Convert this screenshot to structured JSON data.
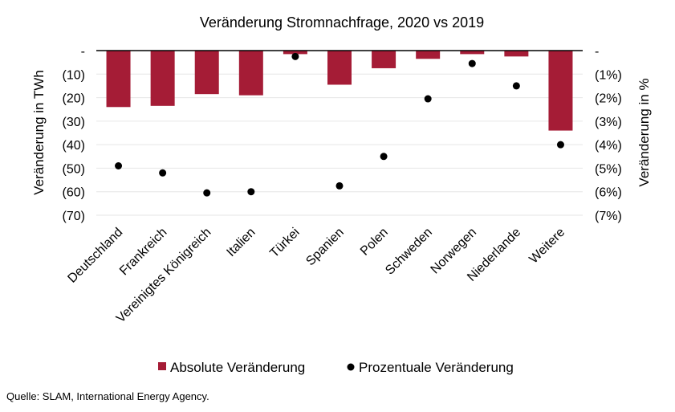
{
  "chart_data": {
    "type": "bar",
    "title": "Veränderung Stromnachfrage, 2020 vs 2019",
    "categories": [
      "Deutschland",
      "Frankreich",
      "Vereinigtes Königreich",
      "Italien",
      "Türkei",
      "Spanien",
      "Polen",
      "Schweden",
      "Norwegen",
      "Niederlande",
      "Weitere"
    ],
    "series": [
      {
        "name": "Absolute Veränderung",
        "type": "bar",
        "axis": "left",
        "color": "#A51C36",
        "values": [
          -24,
          -23.5,
          -18.5,
          -19,
          -1.5,
          -14.5,
          -7.5,
          -3.5,
          -1.5,
          -2.5,
          -34
        ]
      },
      {
        "name": "Prozentuale Veränderung",
        "type": "scatter",
        "axis": "right",
        "color": "#000000",
        "values": [
          -4.9,
          -5.2,
          -6.05,
          -6.0,
          -0.25,
          -5.75,
          -4.5,
          -2.05,
          -0.55,
          -1.5,
          -4.0
        ]
      }
    ],
    "ylabel": "Veränderung in TWh",
    "y2label": "Veränderung in %",
    "ylim": [
      -70,
      0
    ],
    "y2lim": [
      -7,
      0
    ],
    "yticks": [
      "-",
      "(10)",
      "(20)",
      "(30)",
      "(40)",
      "(50)",
      "(60)",
      "(70)"
    ],
    "y2ticks": [
      "-",
      "(1%)",
      "(2%)",
      "(3%)",
      "(4%)",
      "(5%)",
      "(6%)",
      "(7%)"
    ],
    "grid": true,
    "legend_position": "bottom"
  },
  "source": "Quelle: SLAM, International Energy Agency."
}
